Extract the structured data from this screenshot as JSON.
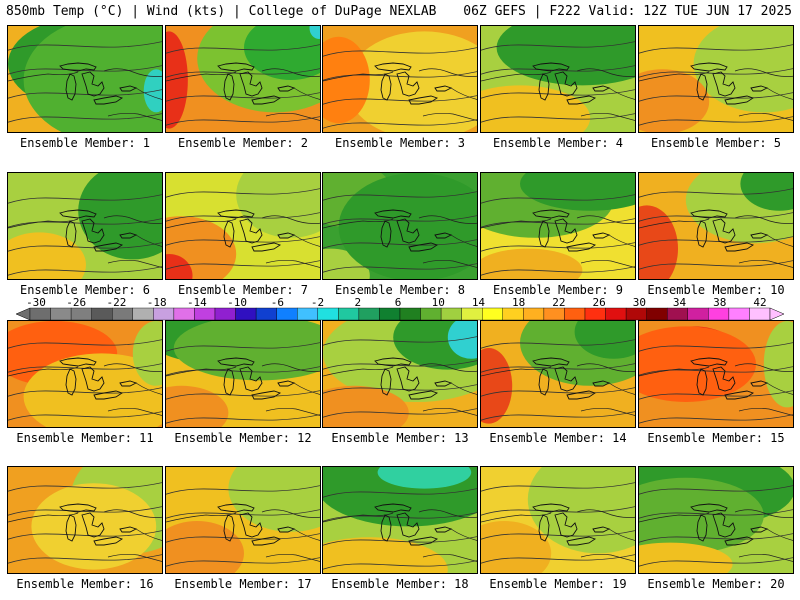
{
  "header": {
    "title_left": "850mb Temp (°C) | Wind (kts) | College of DuPage NEXLAB",
    "title_right": "06Z GEFS | F222 Valid: 12Z TUE JUN 17 2025"
  },
  "colorbar": {
    "labels": [
      "-30",
      "-26",
      "-22",
      "-18",
      "-14",
      "-10",
      "-6",
      "-2",
      "2",
      "6",
      "10",
      "14",
      "18",
      "22",
      "26",
      "30",
      "34",
      "38",
      "42"
    ],
    "colors": [
      "#6e6e6e",
      "#8a8a8a",
      "#7f7f7f",
      "#5a5a5a",
      "#7a7a7a",
      "#b0b0b0",
      "#c8a0e0",
      "#e070e8",
      "#c040e0",
      "#9020d0",
      "#3010c0",
      "#1040d0",
      "#1080ff",
      "#40c0ff",
      "#20e0e0",
      "#20c8a0",
      "#20a060",
      "#108030",
      "#208020",
      "#60b030",
      "#a0d040",
      "#e0f040",
      "#ffff20",
      "#ffd020",
      "#ffb020",
      "#ff9020",
      "#ff6010",
      "#ff3010",
      "#e01010",
      "#b00808",
      "#800000",
      "#a01050",
      "#d020a0",
      "#ff40e0",
      "#ff80ff",
      "#ffc0ff"
    ]
  },
  "panels": [
    {
      "caption": "Ensemble Member: 1",
      "base": "#f0b020",
      "blobs": [
        [
          "#2f9a2a",
          0.55,
          0.35,
          0.55,
          0.45
        ],
        [
          "#50b030",
          0.7,
          0.5,
          0.6,
          0.6
        ],
        [
          "#30d0c0",
          0.95,
          0.6,
          0.08,
          0.2
        ]
      ]
    },
    {
      "caption": "Ensemble Member: 2",
      "base": "#f09020",
      "blobs": [
        [
          "#e83018",
          0.02,
          0.5,
          0.12,
          0.45
        ],
        [
          "#7cc230",
          0.7,
          0.3,
          0.5,
          0.5
        ],
        [
          "#2faa30",
          0.8,
          0.2,
          0.3,
          0.3
        ],
        [
          "#30d0d0",
          0.98,
          0.02,
          0.06,
          0.1
        ]
      ]
    },
    {
      "caption": "Ensemble Member: 3",
      "base": "#f0a020",
      "blobs": [
        [
          "#f0d030",
          0.65,
          0.55,
          0.5,
          0.5
        ],
        [
          "#ff8010",
          0.1,
          0.5,
          0.2,
          0.4
        ]
      ]
    },
    {
      "caption": "Ensemble Member: 4",
      "base": "#a8d040",
      "blobs": [
        [
          "#2f9a2a",
          0.65,
          0.2,
          0.55,
          0.35
        ],
        [
          "#f0c020",
          0.25,
          0.85,
          0.45,
          0.3
        ]
      ]
    },
    {
      "caption": "Ensemble Member: 5",
      "base": "#f0c020",
      "blobs": [
        [
          "#a8d040",
          0.8,
          0.35,
          0.45,
          0.45
        ],
        [
          "#f09020",
          0.15,
          0.7,
          0.3,
          0.3
        ]
      ]
    },
    {
      "caption": "Ensemble Member: 6",
      "base": "#a8d040",
      "blobs": [
        [
          "#2f9a2a",
          0.8,
          0.35,
          0.35,
          0.45
        ],
        [
          "#f0c020",
          0.2,
          0.85,
          0.3,
          0.3
        ]
      ]
    },
    {
      "caption": "Ensemble Member: 7",
      "base": "#d8e030",
      "blobs": [
        [
          "#f09020",
          0.1,
          0.75,
          0.35,
          0.35
        ],
        [
          "#e83018",
          0.02,
          0.95,
          0.15,
          0.2
        ],
        [
          "#a8d040",
          0.8,
          0.2,
          0.35,
          0.4
        ]
      ]
    },
    {
      "caption": "Ensemble Member: 8",
      "base": "#3aa030",
      "blobs": [
        [
          "#60b030",
          0.15,
          0.2,
          0.3,
          0.3
        ],
        [
          "#a8d040",
          0.05,
          0.95,
          0.25,
          0.25
        ],
        [
          "#2f9a2a",
          0.6,
          0.5,
          0.5,
          0.5
        ]
      ]
    },
    {
      "caption": "Ensemble Member: 9",
      "base": "#f0e030",
      "blobs": [
        [
          "#60b030",
          0.35,
          0.25,
          0.5,
          0.35
        ],
        [
          "#2f9a2a",
          0.7,
          0.1,
          0.45,
          0.25
        ],
        [
          "#f0b020",
          0.3,
          0.9,
          0.35,
          0.2
        ]
      ]
    },
    {
      "caption": "Ensemble Member: 10",
      "base": "#f0b020",
      "blobs": [
        [
          "#e84818",
          0.05,
          0.7,
          0.2,
          0.4
        ],
        [
          "#a8d040",
          0.75,
          0.25,
          0.45,
          0.4
        ],
        [
          "#2f9a2a",
          0.9,
          0.1,
          0.25,
          0.25
        ]
      ]
    },
    {
      "caption": "Ensemble Member: 11",
      "base": "#f09020",
      "blobs": [
        [
          "#ff6010",
          0.3,
          0.3,
          0.4,
          0.3
        ],
        [
          "#f0c020",
          0.6,
          0.7,
          0.5,
          0.4
        ],
        [
          "#a8d040",
          0.95,
          0.3,
          0.15,
          0.3
        ]
      ]
    },
    {
      "caption": "Ensemble Member: 12",
      "base": "#f0c020",
      "blobs": [
        [
          "#2f9a2a",
          0.35,
          0.1,
          0.5,
          0.3
        ],
        [
          "#60b030",
          0.6,
          0.25,
          0.55,
          0.3
        ],
        [
          "#f09020",
          0.1,
          0.85,
          0.3,
          0.25
        ]
      ]
    },
    {
      "caption": "Ensemble Member: 13",
      "base": "#f0b020",
      "blobs": [
        [
          "#a8d040",
          0.6,
          0.3,
          0.6,
          0.45
        ],
        [
          "#2f9a2a",
          0.8,
          0.15,
          0.35,
          0.3
        ],
        [
          "#30d0d0",
          0.95,
          0.15,
          0.15,
          0.2
        ],
        [
          "#f09020",
          0.2,
          0.85,
          0.35,
          0.25
        ]
      ]
    },
    {
      "caption": "Ensemble Member: 14",
      "base": "#f0b020",
      "blobs": [
        [
          "#e84818",
          0.05,
          0.6,
          0.15,
          0.35
        ],
        [
          "#60b030",
          0.7,
          0.2,
          0.45,
          0.4
        ],
        [
          "#2f9a2a",
          0.85,
          0.1,
          0.25,
          0.25
        ]
      ]
    },
    {
      "caption": "Ensemble Member: 15",
      "base": "#f09020",
      "blobs": [
        [
          "#e83018",
          0.35,
          0.3,
          0.3,
          0.25
        ],
        [
          "#ff6010",
          0.3,
          0.4,
          0.45,
          0.35
        ],
        [
          "#a8d040",
          0.95,
          0.4,
          0.15,
          0.4
        ]
      ]
    },
    {
      "caption": "Ensemble Member: 16",
      "base": "#f0a020",
      "blobs": [
        [
          "#a8d040",
          0.8,
          0.3,
          0.4,
          0.5
        ],
        [
          "#f0d030",
          0.55,
          0.55,
          0.4,
          0.4
        ]
      ]
    },
    {
      "caption": "Ensemble Member: 17",
      "base": "#f0c020",
      "blobs": [
        [
          "#e83018",
          0.05,
          0.85,
          0.15,
          0.25
        ],
        [
          "#f09020",
          0.2,
          0.8,
          0.3,
          0.3
        ],
        [
          "#a8d040",
          0.8,
          0.2,
          0.4,
          0.4
        ]
      ]
    },
    {
      "caption": "Ensemble Member: 18",
      "base": "#a8d040",
      "blobs": [
        [
          "#2f9a2a",
          0.55,
          0.15,
          0.6,
          0.4
        ],
        [
          "#30d0a0",
          0.65,
          0.05,
          0.3,
          0.15
        ],
        [
          "#f0c020",
          0.3,
          0.95,
          0.5,
          0.3
        ]
      ]
    },
    {
      "caption": "Ensemble Member: 19",
      "base": "#f0d030",
      "blobs": [
        [
          "#a8d040",
          0.75,
          0.3,
          0.45,
          0.5
        ],
        [
          "#f0b020",
          0.15,
          0.8,
          0.3,
          0.3
        ]
      ]
    },
    {
      "caption": "Ensemble Member: 20",
      "base": "#a8d040",
      "blobs": [
        [
          "#2f9a2a",
          0.45,
          0.2,
          0.55,
          0.35
        ],
        [
          "#60b030",
          0.3,
          0.45,
          0.5,
          0.35
        ],
        [
          "#f0c020",
          0.2,
          0.9,
          0.4,
          0.2
        ]
      ]
    }
  ]
}
